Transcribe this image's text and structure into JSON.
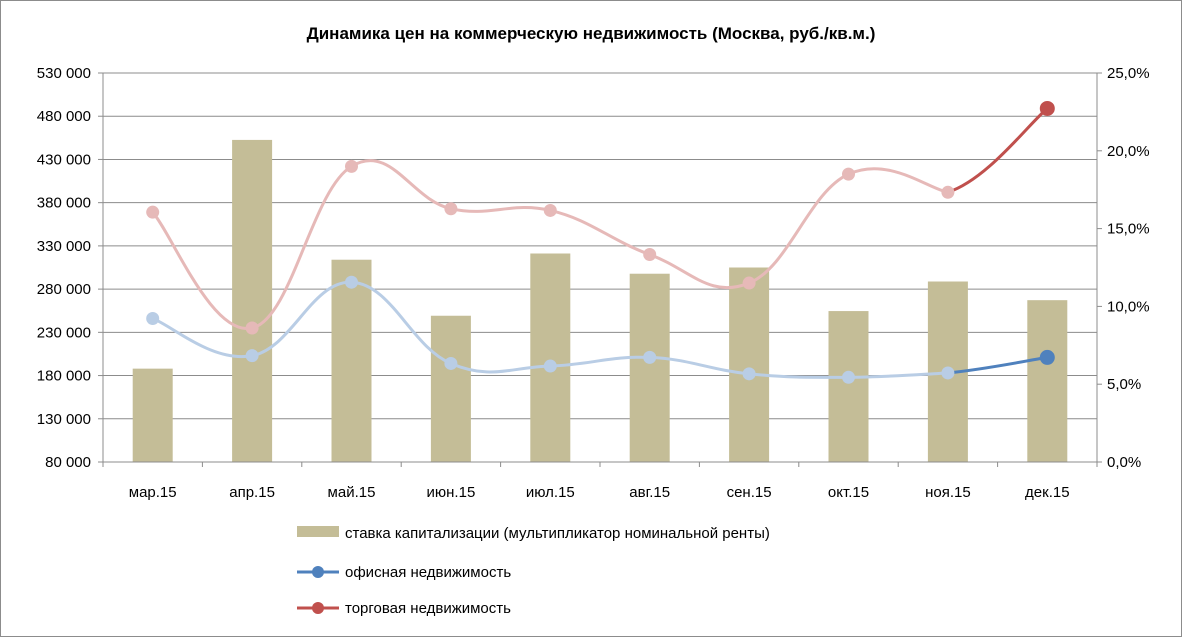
{
  "chart_data": {
    "type": "bar",
    "title": "Динамика цен на коммерческую недвижимость (Москва, руб./кв.м.)",
    "categories": [
      "мар.15",
      "апр.15",
      "май.15",
      "июн.15",
      "июл.15",
      "авг.15",
      "сен.15",
      "окт.15",
      "ноя.15",
      "дек.15"
    ],
    "ylim": [
      80000,
      530000
    ],
    "y_ticks": [
      "80 000",
      "130 000",
      "180 000",
      "230 000",
      "280 000",
      "330 000",
      "380 000",
      "430 000",
      "480 000",
      "530 000"
    ],
    "y2lim": [
      0,
      25
    ],
    "y2_ticks": [
      "0,0%",
      "5,0%",
      "10,0%",
      "15,0%",
      "20,0%",
      "25,0%"
    ],
    "grid": true,
    "legend_position": "bottom",
    "series": [
      {
        "name": "ставка капитализации (мультипликатор номинальной ренты)",
        "type": "bar",
        "axis": "right",
        "color": "#c4bd97",
        "values": [
          6.0,
          20.7,
          13.0,
          9.4,
          13.4,
          12.1,
          12.5,
          9.7,
          11.6,
          10.4
        ]
      },
      {
        "name": "офисная недвижимость",
        "type": "line",
        "axis": "left",
        "color": "#4f81bd",
        "faded_color": "#b9cde5",
        "values": [
          246000,
          203000,
          288000,
          194000,
          191000,
          201000,
          182000,
          178000,
          183000,
          201000
        ]
      },
      {
        "name": "торговая недвижимость",
        "type": "line",
        "axis": "left",
        "color": "#c0504d",
        "faded_color": "#e6b9b8",
        "values": [
          369000,
          235000,
          422000,
          373000,
          371000,
          320000,
          287000,
          413000,
          392000,
          489000
        ]
      }
    ]
  }
}
